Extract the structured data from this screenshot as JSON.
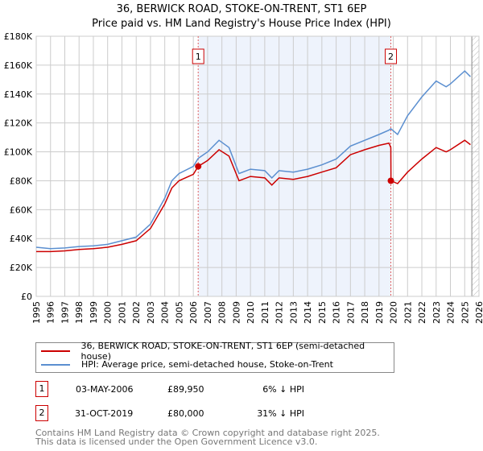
{
  "chart_data": {
    "type": "line",
    "title": "36, BERWICK ROAD, STOKE-ON-TRENT, ST1 6EP",
    "subtitle": "Price paid vs. HM Land Registry's House Price Index (HPI)",
    "xlabel": "",
    "ylabel": "",
    "xlim": [
      1995,
      2026
    ],
    "ylim": [
      0,
      180000
    ],
    "yticks": [
      "£0",
      "£20K",
      "£40K",
      "£60K",
      "£80K",
      "£100K",
      "£120K",
      "£140K",
      "£160K",
      "£180K"
    ],
    "xticks": [
      "1995",
      "1996",
      "1997",
      "1998",
      "1999",
      "2000",
      "2001",
      "2002",
      "2003",
      "2004",
      "2005",
      "2006",
      "2007",
      "2008",
      "2009",
      "2010",
      "2011",
      "2012",
      "2013",
      "2014",
      "2015",
      "2016",
      "2017",
      "2018",
      "2019",
      "2020",
      "2021",
      "2022",
      "2023",
      "2024",
      "2025",
      "2026"
    ],
    "grid": true,
    "legend_position": "bottom",
    "series": [
      {
        "name": "36, BERWICK ROAD, STOKE-ON-TRENT, ST1 6EP (semi-detached house)",
        "color": "#cc0000",
        "x": [
          1995,
          1996,
          1997,
          1998,
          1999,
          2000,
          2001,
          2002,
          2003,
          2004,
          2004.5,
          2005,
          2006,
          2006.34,
          2007,
          2007.8,
          2008.5,
          2009.2,
          2010,
          2011,
          2011.5,
          2012,
          2013,
          2014,
          2015,
          2016,
          2017,
          2018,
          2019,
          2019.7,
          2019.83,
          2019.84,
          2020.3,
          2021,
          2022,
          2023,
          2023.7,
          2024,
          2025,
          2025.4
        ],
        "y": [
          31000,
          31000,
          31500,
          32500,
          33000,
          34000,
          36000,
          38500,
          47000,
          64000,
          75000,
          80000,
          84500,
          89950,
          94000,
          101500,
          97000,
          80000,
          83000,
          82000,
          77000,
          82000,
          81000,
          83000,
          86000,
          89000,
          98000,
          101500,
          104500,
          106000,
          103000,
          80000,
          78000,
          86000,
          95000,
          103000,
          100000,
          101500,
          108000,
          105000
        ]
      },
      {
        "name": "HPI: Average price, semi-detached house, Stoke-on-Trent",
        "color": "#5b8fd0",
        "x": [
          1995,
          1996,
          1997,
          1998,
          1999,
          2000,
          2001,
          2002,
          2003,
          2004,
          2004.5,
          2005,
          2006,
          2006.34,
          2007,
          2007.8,
          2008.5,
          2009.2,
          2010,
          2011,
          2011.5,
          2012,
          2013,
          2014,
          2015,
          2016,
          2017,
          2018,
          2019,
          2019.7,
          2019.83,
          2020.3,
          2021,
          2022,
          2023,
          2023.7,
          2024,
          2025,
          2025.4
        ],
        "y": [
          34000,
          33000,
          33500,
          34500,
          35000,
          36000,
          38500,
          41000,
          50000,
          68000,
          80000,
          85000,
          90000,
          95500,
          100000,
          108000,
          103000,
          85000,
          88000,
          87000,
          82000,
          87000,
          86000,
          88000,
          91000,
          95000,
          104000,
          108000,
          112000,
          115000,
          116000,
          112000,
          125000,
          138000,
          149000,
          145000,
          147000,
          156000,
          152000
        ]
      }
    ],
    "annotations": [
      {
        "label": "1",
        "x": 2006.34,
        "y": 89950
      },
      {
        "label": "2",
        "x": 2019.83,
        "y": 80000
      }
    ]
  },
  "legend": [
    {
      "label": "36, BERWICK ROAD, STOKE-ON-TRENT, ST1 6EP (semi-detached house)",
      "color": "#cc0000"
    },
    {
      "label": "HPI: Average price, semi-detached house, Stoke-on-Trent",
      "color": "#5b8fd0"
    }
  ],
  "sales": [
    {
      "num": "1",
      "date": "03-MAY-2006",
      "price": "£89,950",
      "hpi": "6% ↓ HPI"
    },
    {
      "num": "2",
      "date": "31-OCT-2019",
      "price": "£80,000",
      "hpi": "31% ↓ HPI"
    }
  ],
  "footer": {
    "line1": "Contains HM Land Registry data © Crown copyright and database right 2025.",
    "line2": "This data is licensed under the Open Government Licence v3.0."
  }
}
